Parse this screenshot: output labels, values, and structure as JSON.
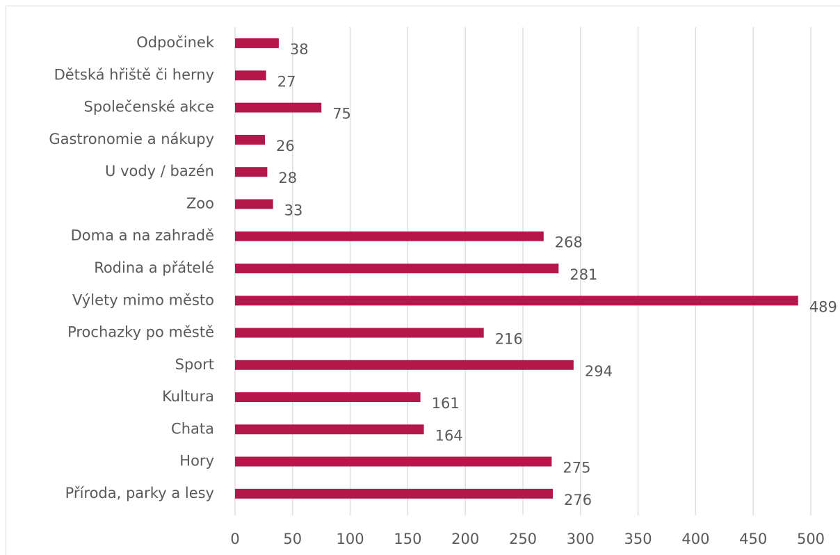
{
  "chart_data": {
    "type": "barh",
    "categories": [
      "Odpočinek",
      "Dětská hřiště či herny",
      "Společenské akce",
      "Gastronomie a nákupy",
      "U vody / bazén",
      "Zoo",
      "Doma a na zahradě",
      "Rodina a přátelé",
      "Výlety mimo město",
      "Prochazky po městě",
      "Sport",
      "Kultura",
      "Chata",
      "Hory",
      "Příroda, parky a lesy"
    ],
    "values": [
      38,
      27,
      75,
      26,
      28,
      33,
      268,
      281,
      489,
      216,
      294,
      161,
      164,
      275,
      276
    ],
    "color": "#b5174b",
    "xlim": [
      0,
      500
    ],
    "xticks": [
      0,
      50,
      100,
      150,
      200,
      250,
      300,
      350,
      400,
      450,
      500
    ],
    "grid": true
  }
}
